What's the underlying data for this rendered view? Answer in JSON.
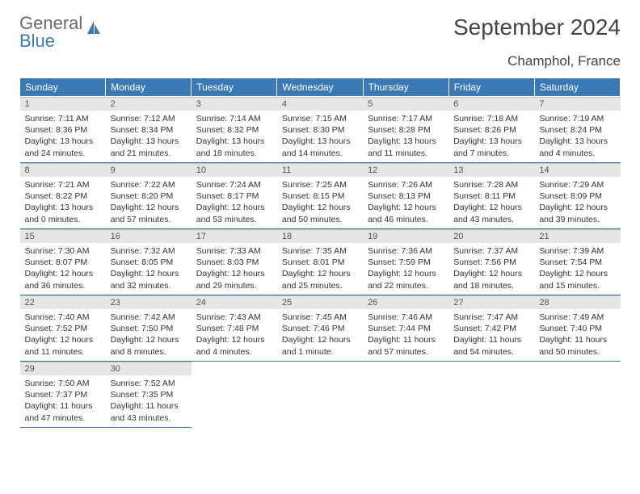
{
  "logo": {
    "line1": "General",
    "line2": "Blue"
  },
  "title": "September 2024",
  "location": "Champhol, France",
  "colors": {
    "header_bg": "#3a78b6",
    "header_fg": "#ffffff",
    "daynum_bg": "#e6e6e6",
    "rule": "#3a78b6"
  },
  "weekdays": [
    "Sunday",
    "Monday",
    "Tuesday",
    "Wednesday",
    "Thursday",
    "Friday",
    "Saturday"
  ],
  "labels": {
    "sunrise": "Sunrise:",
    "sunset": "Sunset:",
    "daylight": "Daylight:"
  },
  "weeks": [
    [
      {
        "n": "1",
        "sr": "7:11 AM",
        "ss": "8:36 PM",
        "dl": "13 hours and 24 minutes."
      },
      {
        "n": "2",
        "sr": "7:12 AM",
        "ss": "8:34 PM",
        "dl": "13 hours and 21 minutes."
      },
      {
        "n": "3",
        "sr": "7:14 AM",
        "ss": "8:32 PM",
        "dl": "13 hours and 18 minutes."
      },
      {
        "n": "4",
        "sr": "7:15 AM",
        "ss": "8:30 PM",
        "dl": "13 hours and 14 minutes."
      },
      {
        "n": "5",
        "sr": "7:17 AM",
        "ss": "8:28 PM",
        "dl": "13 hours and 11 minutes."
      },
      {
        "n": "6",
        "sr": "7:18 AM",
        "ss": "8:26 PM",
        "dl": "13 hours and 7 minutes."
      },
      {
        "n": "7",
        "sr": "7:19 AM",
        "ss": "8:24 PM",
        "dl": "13 hours and 4 minutes."
      }
    ],
    [
      {
        "n": "8",
        "sr": "7:21 AM",
        "ss": "8:22 PM",
        "dl": "13 hours and 0 minutes."
      },
      {
        "n": "9",
        "sr": "7:22 AM",
        "ss": "8:20 PM",
        "dl": "12 hours and 57 minutes."
      },
      {
        "n": "10",
        "sr": "7:24 AM",
        "ss": "8:17 PM",
        "dl": "12 hours and 53 minutes."
      },
      {
        "n": "11",
        "sr": "7:25 AM",
        "ss": "8:15 PM",
        "dl": "12 hours and 50 minutes."
      },
      {
        "n": "12",
        "sr": "7:26 AM",
        "ss": "8:13 PM",
        "dl": "12 hours and 46 minutes."
      },
      {
        "n": "13",
        "sr": "7:28 AM",
        "ss": "8:11 PM",
        "dl": "12 hours and 43 minutes."
      },
      {
        "n": "14",
        "sr": "7:29 AM",
        "ss": "8:09 PM",
        "dl": "12 hours and 39 minutes."
      }
    ],
    [
      {
        "n": "15",
        "sr": "7:30 AM",
        "ss": "8:07 PM",
        "dl": "12 hours and 36 minutes."
      },
      {
        "n": "16",
        "sr": "7:32 AM",
        "ss": "8:05 PM",
        "dl": "12 hours and 32 minutes."
      },
      {
        "n": "17",
        "sr": "7:33 AM",
        "ss": "8:03 PM",
        "dl": "12 hours and 29 minutes."
      },
      {
        "n": "18",
        "sr": "7:35 AM",
        "ss": "8:01 PM",
        "dl": "12 hours and 25 minutes."
      },
      {
        "n": "19",
        "sr": "7:36 AM",
        "ss": "7:59 PM",
        "dl": "12 hours and 22 minutes."
      },
      {
        "n": "20",
        "sr": "7:37 AM",
        "ss": "7:56 PM",
        "dl": "12 hours and 18 minutes."
      },
      {
        "n": "21",
        "sr": "7:39 AM",
        "ss": "7:54 PM",
        "dl": "12 hours and 15 minutes."
      }
    ],
    [
      {
        "n": "22",
        "sr": "7:40 AM",
        "ss": "7:52 PM",
        "dl": "12 hours and 11 minutes."
      },
      {
        "n": "23",
        "sr": "7:42 AM",
        "ss": "7:50 PM",
        "dl": "12 hours and 8 minutes."
      },
      {
        "n": "24",
        "sr": "7:43 AM",
        "ss": "7:48 PM",
        "dl": "12 hours and 4 minutes."
      },
      {
        "n": "25",
        "sr": "7:45 AM",
        "ss": "7:46 PM",
        "dl": "12 hours and 1 minute."
      },
      {
        "n": "26",
        "sr": "7:46 AM",
        "ss": "7:44 PM",
        "dl": "11 hours and 57 minutes."
      },
      {
        "n": "27",
        "sr": "7:47 AM",
        "ss": "7:42 PM",
        "dl": "11 hours and 54 minutes."
      },
      {
        "n": "28",
        "sr": "7:49 AM",
        "ss": "7:40 PM",
        "dl": "11 hours and 50 minutes."
      }
    ],
    [
      {
        "n": "29",
        "sr": "7:50 AM",
        "ss": "7:37 PM",
        "dl": "11 hours and 47 minutes."
      },
      {
        "n": "30",
        "sr": "7:52 AM",
        "ss": "7:35 PM",
        "dl": "11 hours and 43 minutes."
      },
      null,
      null,
      null,
      null,
      null
    ]
  ]
}
